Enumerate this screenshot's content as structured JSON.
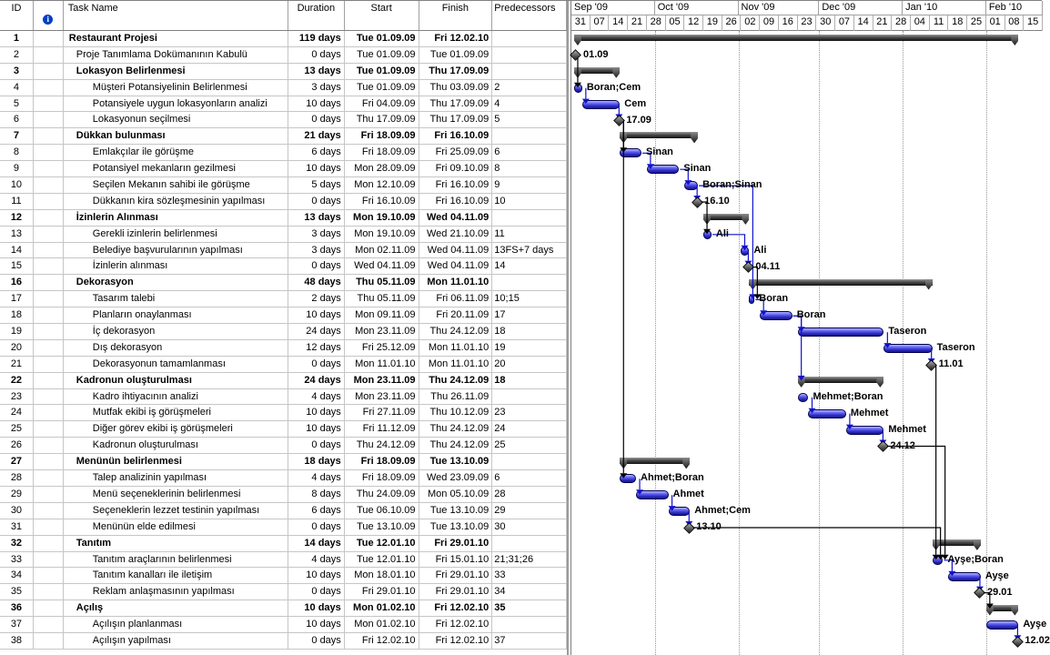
{
  "table": {
    "columns": {
      "id": "ID",
      "task_name": "Task Name",
      "duration": "Duration",
      "start": "Start",
      "finish": "Finish",
      "predecessors": "Predecessors"
    },
    "info_icon": "i"
  },
  "timeline": {
    "start": "31.08.09",
    "months": [
      {
        "label": "Sep '09",
        "first": "01.09.09"
      },
      {
        "label": "Oct '09",
        "first": "01.10.09"
      },
      {
        "label": "Nov '09",
        "first": "01.11.09"
      },
      {
        "label": "Dec '09",
        "first": "01.12.09"
      },
      {
        "label": "Jan '10",
        "first": "01.01.10"
      },
      {
        "label": "Feb '10",
        "first": "01.02.10"
      }
    ],
    "weeks": [
      "31",
      "07",
      "14",
      "21",
      "28",
      "05",
      "12",
      "19",
      "26",
      "02",
      "09",
      "16",
      "23",
      "30",
      "07",
      "14",
      "21",
      "28",
      "04",
      "11",
      "18",
      "25",
      "01",
      "08",
      "15"
    ]
  },
  "tasks": [
    {
      "id": 1,
      "level": 0,
      "type": "summary",
      "name": "Restaurant Projesi",
      "duration": "119 days",
      "start": "Tue 01.09.09",
      "finish": "Fri 12.02.10",
      "pred": "",
      "bar_label": ""
    },
    {
      "id": 2,
      "level": 1,
      "type": "milestone",
      "name": "Proje Tanımlama Dokümanının Kabulü",
      "duration": "0 days",
      "start": "Tue 01.09.09",
      "finish": "Tue 01.09.09",
      "pred": "",
      "bar_label": "01.09"
    },
    {
      "id": 3,
      "level": 1,
      "type": "summary",
      "name": "Lokasyon Belirlenmesi",
      "duration": "13 days",
      "start": "Tue 01.09.09",
      "finish": "Thu 17.09.09",
      "pred": "",
      "bar_label": ""
    },
    {
      "id": 4,
      "level": 2,
      "type": "task",
      "name": "Müşteri Potansiyelinin Belirlenmesi",
      "duration": "3 days",
      "start": "Tue 01.09.09",
      "finish": "Thu 03.09.09",
      "pred": "2",
      "bar_label": "Boran;Cem"
    },
    {
      "id": 5,
      "level": 2,
      "type": "task",
      "name": "Potansiyele uygun lokasyonların analizi",
      "duration": "10 days",
      "start": "Fri 04.09.09",
      "finish": "Thu 17.09.09",
      "pred": "4",
      "bar_label": "Cem"
    },
    {
      "id": 6,
      "level": 2,
      "type": "milestone",
      "name": "Lokasyonun seçilmesi",
      "duration": "0 days",
      "start": "Thu 17.09.09",
      "finish": "Thu 17.09.09",
      "pred": "5",
      "bar_label": "17.09"
    },
    {
      "id": 7,
      "level": 1,
      "type": "summary",
      "name": "Dükkan bulunması",
      "duration": "21 days",
      "start": "Fri 18.09.09",
      "finish": "Fri 16.10.09",
      "pred": "",
      "bar_label": ""
    },
    {
      "id": 8,
      "level": 2,
      "type": "task",
      "name": "Emlakçılar ile görüşme",
      "duration": "6 days",
      "start": "Fri 18.09.09",
      "finish": "Fri 25.09.09",
      "pred": "6",
      "bar_label": "Sinan"
    },
    {
      "id": 9,
      "level": 2,
      "type": "task",
      "name": "Potansiyel mekanların gezilmesi",
      "duration": "10 days",
      "start": "Mon 28.09.09",
      "finish": "Fri 09.10.09",
      "pred": "8",
      "bar_label": "Sinan"
    },
    {
      "id": 10,
      "level": 2,
      "type": "task",
      "name": "Seçilen Mekanın sahibi ile görüşme",
      "duration": "5 days",
      "start": "Mon 12.10.09",
      "finish": "Fri 16.10.09",
      "pred": "9",
      "bar_label": "Boran;Sinan"
    },
    {
      "id": 11,
      "level": 2,
      "type": "milestone",
      "name": "Dükkanın kira sözleşmesinin yapılması",
      "duration": "0 days",
      "start": "Fri 16.10.09",
      "finish": "Fri 16.10.09",
      "pred": "10",
      "bar_label": "16.10"
    },
    {
      "id": 12,
      "level": 1,
      "type": "summary",
      "name": "İzinlerin Alınması",
      "duration": "13 days",
      "start": "Mon 19.10.09",
      "finish": "Wed 04.11.09",
      "pred": "",
      "bar_label": ""
    },
    {
      "id": 13,
      "level": 2,
      "type": "task",
      "name": "Gerekli izinlerin belirlenmesi",
      "duration": "3 days",
      "start": "Mon 19.10.09",
      "finish": "Wed 21.10.09",
      "pred": "11",
      "bar_label": "Ali"
    },
    {
      "id": 14,
      "level": 2,
      "type": "task",
      "name": "Belediye başvurularının yapılması",
      "duration": "3 days",
      "start": "Mon 02.11.09",
      "finish": "Wed 04.11.09",
      "pred": "13FS+7 days",
      "bar_label": "Ali"
    },
    {
      "id": 15,
      "level": 2,
      "type": "milestone",
      "name": "İzinlerin alınması",
      "duration": "0 days",
      "start": "Wed 04.11.09",
      "finish": "Wed 04.11.09",
      "pred": "14",
      "bar_label": "04.11"
    },
    {
      "id": 16,
      "level": 1,
      "type": "summary",
      "name": "Dekorasyon",
      "duration": "48 days",
      "start": "Thu 05.11.09",
      "finish": "Mon 11.01.10",
      "pred": "",
      "bar_label": ""
    },
    {
      "id": 17,
      "level": 2,
      "type": "task",
      "name": "Tasarım talebi",
      "duration": "2 days",
      "start": "Thu 05.11.09",
      "finish": "Fri 06.11.09",
      "pred": "10;15",
      "bar_label": "Boran"
    },
    {
      "id": 18,
      "level": 2,
      "type": "task",
      "name": "Planların onaylanması",
      "duration": "10 days",
      "start": "Mon 09.11.09",
      "finish": "Fri 20.11.09",
      "pred": "17",
      "bar_label": "Boran"
    },
    {
      "id": 19,
      "level": 2,
      "type": "task",
      "name": "İç dekorasyon",
      "duration": "24 days",
      "start": "Mon 23.11.09",
      "finish": "Thu 24.12.09",
      "pred": "18",
      "bar_label": "Taseron"
    },
    {
      "id": 20,
      "level": 2,
      "type": "task",
      "name": "Dış dekorasyon",
      "duration": "12 days",
      "start": "Fri 25.12.09",
      "finish": "Mon 11.01.10",
      "pred": "19",
      "bar_label": "Taseron"
    },
    {
      "id": 21,
      "level": 2,
      "type": "milestone",
      "name": "Dekorasyonun tamamlanması",
      "duration": "0 days",
      "start": "Mon 11.01.10",
      "finish": "Mon 11.01.10",
      "pred": "20",
      "bar_label": "11.01"
    },
    {
      "id": 22,
      "level": 1,
      "type": "summary",
      "name": "Kadronun oluşturulması",
      "duration": "24 days",
      "start": "Mon 23.11.09",
      "finish": "Thu 24.12.09",
      "pred": "18",
      "bar_label": ""
    },
    {
      "id": 23,
      "level": 2,
      "type": "task",
      "name": "Kadro ihtiyacının analizi",
      "duration": "4 days",
      "start": "Mon 23.11.09",
      "finish": "Thu 26.11.09",
      "pred": "",
      "bar_label": "Mehmet;Boran"
    },
    {
      "id": 24,
      "level": 2,
      "type": "task",
      "name": "Mutfak ekibi iş görüşmeleri",
      "duration": "10 days",
      "start": "Fri 27.11.09",
      "finish": "Thu 10.12.09",
      "pred": "23",
      "bar_label": "Mehmet"
    },
    {
      "id": 25,
      "level": 2,
      "type": "task",
      "name": "Diğer görev ekibi iş görüşmeleri",
      "duration": "10 days",
      "start": "Fri 11.12.09",
      "finish": "Thu 24.12.09",
      "pred": "24",
      "bar_label": "Mehmet"
    },
    {
      "id": 26,
      "level": 2,
      "type": "milestone",
      "name": "Kadronun oluşturulması",
      "duration": "0 days",
      "start": "Thu 24.12.09",
      "finish": "Thu 24.12.09",
      "pred": "25",
      "bar_label": "24.12"
    },
    {
      "id": 27,
      "level": 1,
      "type": "summary",
      "name": "Menünün belirlenmesi",
      "duration": "18 days",
      "start": "Fri 18.09.09",
      "finish": "Tue 13.10.09",
      "pred": "",
      "bar_label": ""
    },
    {
      "id": 28,
      "level": 2,
      "type": "task",
      "name": "Talep analizinin yapılması",
      "duration": "4 days",
      "start": "Fri 18.09.09",
      "finish": "Wed 23.09.09",
      "pred": "6",
      "bar_label": "Ahmet;Boran"
    },
    {
      "id": 29,
      "level": 2,
      "type": "task",
      "name": "Menü seçeneklerinin belirlenmesi",
      "duration": "8 days",
      "start": "Thu 24.09.09",
      "finish": "Mon 05.10.09",
      "pred": "28",
      "bar_label": "Ahmet"
    },
    {
      "id": 30,
      "level": 2,
      "type": "task",
      "name": "Seçeneklerin lezzet testinin yapılması",
      "duration": "6 days",
      "start": "Tue 06.10.09",
      "finish": "Tue 13.10.09",
      "pred": "29",
      "bar_label": "Ahmet;Cem"
    },
    {
      "id": 31,
      "level": 2,
      "type": "milestone",
      "name": "Menünün elde edilmesi",
      "duration": "0 days",
      "start": "Tue 13.10.09",
      "finish": "Tue 13.10.09",
      "pred": "30",
      "bar_label": "13.10"
    },
    {
      "id": 32,
      "level": 1,
      "type": "summary",
      "name": "Tanıtım",
      "duration": "14 days",
      "start": "Tue 12.01.10",
      "finish": "Fri 29.01.10",
      "pred": "",
      "bar_label": ""
    },
    {
      "id": 33,
      "level": 2,
      "type": "task",
      "name": "Tanıtım araçlarının belirlenmesi",
      "duration": "4 days",
      "start": "Tue 12.01.10",
      "finish": "Fri 15.01.10",
      "pred": "21;31;26",
      "bar_label": "Ayşe;Boran"
    },
    {
      "id": 34,
      "level": 2,
      "type": "task",
      "name": "Tanıtım kanalları ile iletişim",
      "duration": "10 days",
      "start": "Mon 18.01.10",
      "finish": "Fri 29.01.10",
      "pred": "33",
      "bar_label": "Ayşe"
    },
    {
      "id": 35,
      "level": 2,
      "type": "milestone",
      "name": "Reklam anlaşmasının yapılması",
      "duration": "0 days",
      "start": "Fri 29.01.10",
      "finish": "Fri 29.01.10",
      "pred": "34",
      "bar_label": "29.01"
    },
    {
      "id": 36,
      "level": 1,
      "type": "summary",
      "name": "Açılış",
      "duration": "10 days",
      "start": "Mon 01.02.10",
      "finish": "Fri 12.02.10",
      "pred": "35",
      "bar_label": ""
    },
    {
      "id": 37,
      "level": 2,
      "type": "task",
      "name": "Açılışın planlanması",
      "duration": "10 days",
      "start": "Mon 01.02.10",
      "finish": "Fri 12.02.10",
      "pred": "",
      "bar_label": "Ayşe"
    },
    {
      "id": 38,
      "level": 2,
      "type": "milestone",
      "name": "Açılışın yapılması",
      "duration": "0 days",
      "start": "Fri 12.02.10",
      "finish": "Fri 12.02.10",
      "pred": "37",
      "bar_label": "12.02"
    }
  ],
  "links": [
    [
      2,
      4
    ],
    [
      4,
      5
    ],
    [
      5,
      6
    ],
    [
      6,
      8
    ],
    [
      8,
      9
    ],
    [
      9,
      10
    ],
    [
      10,
      11
    ],
    [
      11,
      13
    ],
    [
      13,
      14
    ],
    [
      14,
      15
    ],
    [
      10,
      17
    ],
    [
      15,
      17
    ],
    [
      17,
      18
    ],
    [
      18,
      19
    ],
    [
      19,
      20
    ],
    [
      20,
      21
    ],
    [
      18,
      22
    ],
    [
      23,
      24
    ],
    [
      24,
      25
    ],
    [
      25,
      26
    ],
    [
      6,
      28
    ],
    [
      28,
      29
    ],
    [
      29,
      30
    ],
    [
      30,
      31
    ],
    [
      21,
      33
    ],
    [
      31,
      33
    ],
    [
      26,
      33
    ],
    [
      33,
      34
    ],
    [
      34,
      35
    ],
    [
      35,
      36
    ],
    [
      37,
      38
    ]
  ],
  "colors": {
    "link_blue": "#1111cc",
    "link_black": "#000000",
    "bar_blue": "#3a3ae0",
    "summary_dark": "#1a1a1a",
    "grid_dotted": "#999999",
    "info_icon_bg": "#0040c0"
  }
}
